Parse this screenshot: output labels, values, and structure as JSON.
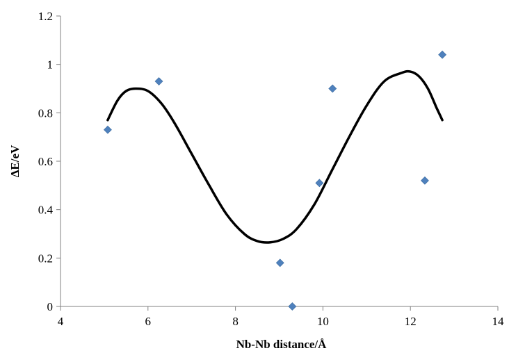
{
  "chart_data": {
    "type": "scatter",
    "title": "",
    "xlabel": "Nb-Nb distance/Å",
    "ylabel": "ΔE/eV",
    "xlim": [
      4,
      14
    ],
    "ylim": [
      0,
      1.2
    ],
    "x_ticks": [
      "4",
      "6",
      "8",
      "10",
      "12",
      "14"
    ],
    "y_ticks": [
      "0",
      "0.2",
      "0.4",
      "0.6",
      "0.8",
      "1",
      "1.2"
    ],
    "grid": false,
    "legend": "none",
    "series": [
      {
        "kind": "markers",
        "marker": "diamond",
        "color": "#4F81BD",
        "points": [
          {
            "x": 5.08,
            "y": 0.73
          },
          {
            "x": 6.25,
            "y": 0.93
          },
          {
            "x": 9.02,
            "y": 0.18
          },
          {
            "x": 9.3,
            "y": 0.0
          },
          {
            "x": 9.92,
            "y": 0.51
          },
          {
            "x": 10.22,
            "y": 0.9
          },
          {
            "x": 12.33,
            "y": 0.52
          },
          {
            "x": 12.73,
            "y": 1.04
          }
        ]
      },
      {
        "kind": "trendline",
        "color": "#000000",
        "points": [
          {
            "x": 5.08,
            "y": 0.77
          },
          {
            "x": 5.3,
            "y": 0.85
          },
          {
            "x": 5.5,
            "y": 0.89
          },
          {
            "x": 5.72,
            "y": 0.9
          },
          {
            "x": 6.0,
            "y": 0.89
          },
          {
            "x": 6.3,
            "y": 0.84
          },
          {
            "x": 6.6,
            "y": 0.76
          },
          {
            "x": 7.0,
            "y": 0.63
          },
          {
            "x": 7.4,
            "y": 0.5
          },
          {
            "x": 7.8,
            "y": 0.38
          },
          {
            "x": 8.2,
            "y": 0.3
          },
          {
            "x": 8.5,
            "y": 0.27
          },
          {
            "x": 8.8,
            "y": 0.265
          },
          {
            "x": 9.1,
            "y": 0.28
          },
          {
            "x": 9.4,
            "y": 0.32
          },
          {
            "x": 9.8,
            "y": 0.42
          },
          {
            "x": 10.2,
            "y": 0.56
          },
          {
            "x": 10.6,
            "y": 0.7
          },
          {
            "x": 11.0,
            "y": 0.83
          },
          {
            "x": 11.4,
            "y": 0.93
          },
          {
            "x": 11.8,
            "y": 0.965
          },
          {
            "x": 12.0,
            "y": 0.97
          },
          {
            "x": 12.2,
            "y": 0.95
          },
          {
            "x": 12.4,
            "y": 0.9
          },
          {
            "x": 12.6,
            "y": 0.82
          },
          {
            "x": 12.73,
            "y": 0.77
          }
        ]
      }
    ]
  }
}
